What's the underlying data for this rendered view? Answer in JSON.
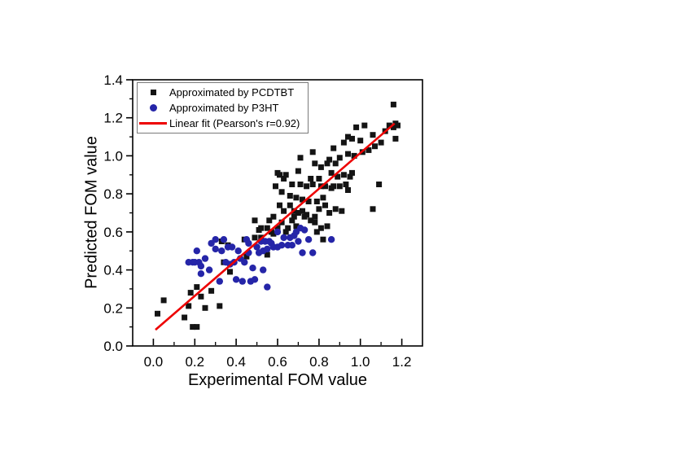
{
  "figure": {
    "background": "#ffffff",
    "legend_border_color": "#7a7a7a"
  },
  "chart_data": {
    "type": "scatter",
    "title": "",
    "xlabel": "Experimental FOM value",
    "ylabel": "Predicted FOM value",
    "xlim": [
      -0.1,
      1.3
    ],
    "ylim": [
      0,
      1.4
    ],
    "x_ticks": [
      0.0,
      0.2,
      0.4,
      0.6,
      0.8,
      1.0,
      1.2
    ],
    "x_tick_labels": [
      "0.0",
      "0.2",
      "0.4",
      "0.6",
      "0.8",
      "1.0",
      "1.2"
    ],
    "x_minor_ticks": [
      0.1,
      0.3,
      0.5,
      0.7,
      0.9,
      1.1
    ],
    "y_ticks": [
      0.0,
      0.2,
      0.4,
      0.6,
      0.8,
      1.0,
      1.2,
      1.4
    ],
    "y_tick_labels": [
      "0.0",
      "0.2",
      "0.4",
      "0.6",
      "0.8",
      "1.0",
      "1.2",
      "1.4"
    ],
    "y_minor_ticks": [
      0.1,
      0.3,
      0.5,
      0.7,
      0.9,
      1.1,
      1.3
    ],
    "grid": false,
    "legend_position": "top-left",
    "series": [
      {
        "name": "Approximated by PCDTBT",
        "marker": "square",
        "color": "#141414",
        "points": [
          [
            0.02,
            0.17
          ],
          [
            0.05,
            0.24
          ],
          [
            0.15,
            0.15
          ],
          [
            0.17,
            0.21
          ],
          [
            0.18,
            0.28
          ],
          [
            0.19,
            0.1
          ],
          [
            0.21,
            0.1
          ],
          [
            0.21,
            0.31
          ],
          [
            0.23,
            0.26
          ],
          [
            0.25,
            0.2
          ],
          [
            0.28,
            0.29
          ],
          [
            0.32,
            0.21
          ],
          [
            0.33,
            0.55
          ],
          [
            0.34,
            0.44
          ],
          [
            0.36,
            0.53
          ],
          [
            0.37,
            0.39
          ],
          [
            0.44,
            0.56
          ],
          [
            0.45,
            0.47
          ],
          [
            0.49,
            0.57
          ],
          [
            0.49,
            0.66
          ],
          [
            0.51,
            0.61
          ],
          [
            0.52,
            0.62
          ],
          [
            0.52,
            0.57
          ],
          [
            0.55,
            0.48
          ],
          [
            0.55,
            0.62
          ],
          [
            0.56,
            0.66
          ],
          [
            0.57,
            0.6
          ],
          [
            0.58,
            0.59
          ],
          [
            0.58,
            0.68
          ],
          [
            0.59,
            0.84
          ],
          [
            0.6,
            0.91
          ],
          [
            0.6,
            0.62
          ],
          [
            0.61,
            0.74
          ],
          [
            0.61,
            0.9
          ],
          [
            0.62,
            0.65
          ],
          [
            0.62,
            0.81
          ],
          [
            0.63,
            0.71
          ],
          [
            0.63,
            0.88
          ],
          [
            0.64,
            0.9
          ],
          [
            0.64,
            0.6
          ],
          [
            0.65,
            0.62
          ],
          [
            0.66,
            0.74
          ],
          [
            0.66,
            0.79
          ],
          [
            0.67,
            0.66
          ],
          [
            0.67,
            0.85
          ],
          [
            0.68,
            0.71
          ],
          [
            0.68,
            0.68
          ],
          [
            0.69,
            0.78
          ],
          [
            0.69,
            0.63
          ],
          [
            0.7,
            0.7
          ],
          [
            0.7,
            0.92
          ],
          [
            0.71,
            0.99
          ],
          [
            0.71,
            0.85
          ],
          [
            0.72,
            0.77
          ],
          [
            0.72,
            0.71
          ],
          [
            0.73,
            0.68
          ],
          [
            0.74,
            0.84
          ],
          [
            0.74,
            0.69
          ],
          [
            0.75,
            0.76
          ],
          [
            0.76,
            0.88
          ],
          [
            0.76,
            0.66
          ],
          [
            0.77,
            1.02
          ],
          [
            0.77,
            0.85
          ],
          [
            0.78,
            0.96
          ],
          [
            0.78,
            0.68
          ],
          [
            0.78,
            0.65
          ],
          [
            0.79,
            0.76
          ],
          [
            0.79,
            0.6
          ],
          [
            0.8,
            0.72
          ],
          [
            0.8,
            0.88
          ],
          [
            0.81,
            0.62
          ],
          [
            0.81,
            0.84
          ],
          [
            0.81,
            0.94
          ],
          [
            0.82,
            0.78
          ],
          [
            0.82,
            0.56
          ],
          [
            0.83,
            0.84
          ],
          [
            0.83,
            0.74
          ],
          [
            0.84,
            0.96
          ],
          [
            0.84,
            0.63
          ],
          [
            0.85,
            0.7
          ],
          [
            0.85,
            0.98
          ],
          [
            0.86,
            0.83
          ],
          [
            0.86,
            0.91
          ],
          [
            0.87,
            1.04
          ],
          [
            0.87,
            0.84
          ],
          [
            0.88,
            0.72
          ],
          [
            0.88,
            0.96
          ],
          [
            0.89,
            0.89
          ],
          [
            0.9,
            0.84
          ],
          [
            0.9,
            0.99
          ],
          [
            0.91,
            0.71
          ],
          [
            0.92,
            1.07
          ],
          [
            0.92,
            0.9
          ],
          [
            0.93,
            0.85
          ],
          [
            0.94,
            1.01
          ],
          [
            0.94,
            1.1
          ],
          [
            0.94,
            0.82
          ],
          [
            0.95,
            0.89
          ],
          [
            0.96,
            0.91
          ],
          [
            0.96,
            1.09
          ],
          [
            0.97,
            1.0
          ],
          [
            0.98,
            1.15
          ],
          [
            1.0,
            1.08
          ],
          [
            1.01,
            1.02
          ],
          [
            1.02,
            1.16
          ],
          [
            1.04,
            1.03
          ],
          [
            1.06,
            1.11
          ],
          [
            1.06,
            0.72
          ],
          [
            1.07,
            1.05
          ],
          [
            1.09,
            0.85
          ],
          [
            1.1,
            1.07
          ],
          [
            1.12,
            1.13
          ],
          [
            1.14,
            1.16
          ],
          [
            1.16,
            1.27
          ],
          [
            1.16,
            1.15
          ],
          [
            1.17,
            1.17
          ],
          [
            1.17,
            1.09
          ],
          [
            1.18,
            1.16
          ]
        ]
      },
      {
        "name": "Approximated by P3HT",
        "marker": "circle",
        "color": "#2525a8",
        "points": [
          [
            0.17,
            0.44
          ],
          [
            0.19,
            0.44
          ],
          [
            0.2,
            0.44
          ],
          [
            0.22,
            0.44
          ],
          [
            0.21,
            0.5
          ],
          [
            0.23,
            0.42
          ],
          [
            0.23,
            0.38
          ],
          [
            0.25,
            0.46
          ],
          [
            0.27,
            0.4
          ],
          [
            0.28,
            0.54
          ],
          [
            0.3,
            0.56
          ],
          [
            0.3,
            0.51
          ],
          [
            0.32,
            0.34
          ],
          [
            0.33,
            0.5
          ],
          [
            0.34,
            0.56
          ],
          [
            0.35,
            0.44
          ],
          [
            0.36,
            0.52
          ],
          [
            0.37,
            0.43
          ],
          [
            0.38,
            0.52
          ],
          [
            0.39,
            0.44
          ],
          [
            0.4,
            0.35
          ],
          [
            0.41,
            0.5
          ],
          [
            0.42,
            0.46
          ],
          [
            0.43,
            0.34
          ],
          [
            0.44,
            0.44
          ],
          [
            0.45,
            0.56
          ],
          [
            0.46,
            0.54
          ],
          [
            0.46,
            0.49
          ],
          [
            0.47,
            0.34
          ],
          [
            0.48,
            0.41
          ],
          [
            0.49,
            0.35
          ],
          [
            0.5,
            0.52
          ],
          [
            0.51,
            0.49
          ],
          [
            0.52,
            0.55
          ],
          [
            0.53,
            0.4
          ],
          [
            0.53,
            0.5
          ],
          [
            0.54,
            0.55
          ],
          [
            0.55,
            0.31
          ],
          [
            0.55,
            0.51
          ],
          [
            0.56,
            0.55
          ],
          [
            0.57,
            0.54
          ],
          [
            0.58,
            0.52
          ],
          [
            0.6,
            0.6
          ],
          [
            0.6,
            0.52
          ],
          [
            0.62,
            0.53
          ],
          [
            0.63,
            0.57
          ],
          [
            0.65,
            0.53
          ],
          [
            0.66,
            0.57
          ],
          [
            0.67,
            0.53
          ],
          [
            0.68,
            0.58
          ],
          [
            0.69,
            0.6
          ],
          [
            0.7,
            0.55
          ],
          [
            0.71,
            0.62
          ],
          [
            0.72,
            0.49
          ],
          [
            0.73,
            0.61
          ],
          [
            0.75,
            0.56
          ],
          [
            0.77,
            0.49
          ],
          [
            0.86,
            0.56
          ]
        ]
      }
    ],
    "fit_line": {
      "label": "Linear fit (Pearson's r=0.92)",
      "pearson_r": 0.92,
      "color": "#ed0000",
      "x_start": 0.01,
      "y_start": 0.085,
      "x_end": 1.165,
      "y_end": 1.17
    }
  }
}
